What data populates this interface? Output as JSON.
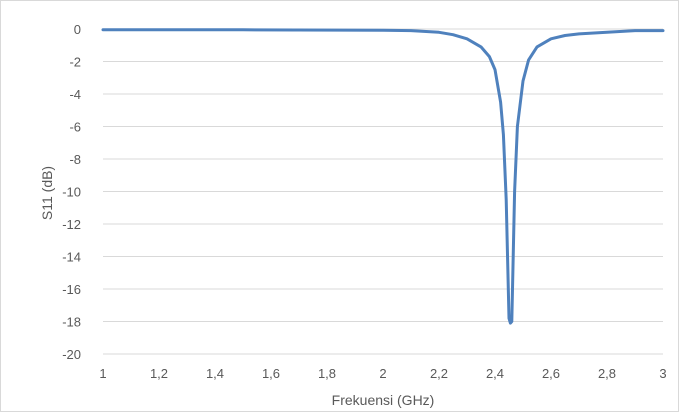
{
  "chart_data": {
    "type": "line",
    "title": "",
    "xlabel": "Frekuensi (GHz)",
    "ylabel": "S11 (dB)",
    "xlim": [
      1,
      3
    ],
    "ylim": [
      -20,
      0
    ],
    "x_ticks": [
      "1",
      "1,2",
      "1,4",
      "1,6",
      "1,8",
      "2",
      "2,2",
      "2,4",
      "2,6",
      "2,8",
      "3"
    ],
    "y_ticks": [
      "0",
      "-2",
      "-4",
      "-6",
      "-8",
      "-10",
      "-12",
      "-14",
      "-16",
      "-18",
      "-20"
    ],
    "grid": "horizontal",
    "legend": "none",
    "series": [
      {
        "color": "#4f81bd",
        "x": [
          1.0,
          1.5,
          2.0,
          2.1,
          2.2,
          2.25,
          2.3,
          2.35,
          2.38,
          2.4,
          2.42,
          2.43,
          2.44,
          2.45,
          2.455,
          2.46,
          2.47,
          2.48,
          2.5,
          2.52,
          2.55,
          2.6,
          2.65,
          2.7,
          2.8,
          2.9,
          3.0
        ],
        "y": [
          -0.05,
          -0.05,
          -0.08,
          -0.1,
          -0.2,
          -0.35,
          -0.6,
          -1.1,
          -1.7,
          -2.5,
          -4.5,
          -6.5,
          -10.5,
          -17.8,
          -18.1,
          -18.0,
          -10.0,
          -6.0,
          -3.2,
          -1.9,
          -1.1,
          -0.6,
          -0.4,
          -0.3,
          -0.2,
          -0.1,
          -0.1
        ]
      }
    ]
  }
}
